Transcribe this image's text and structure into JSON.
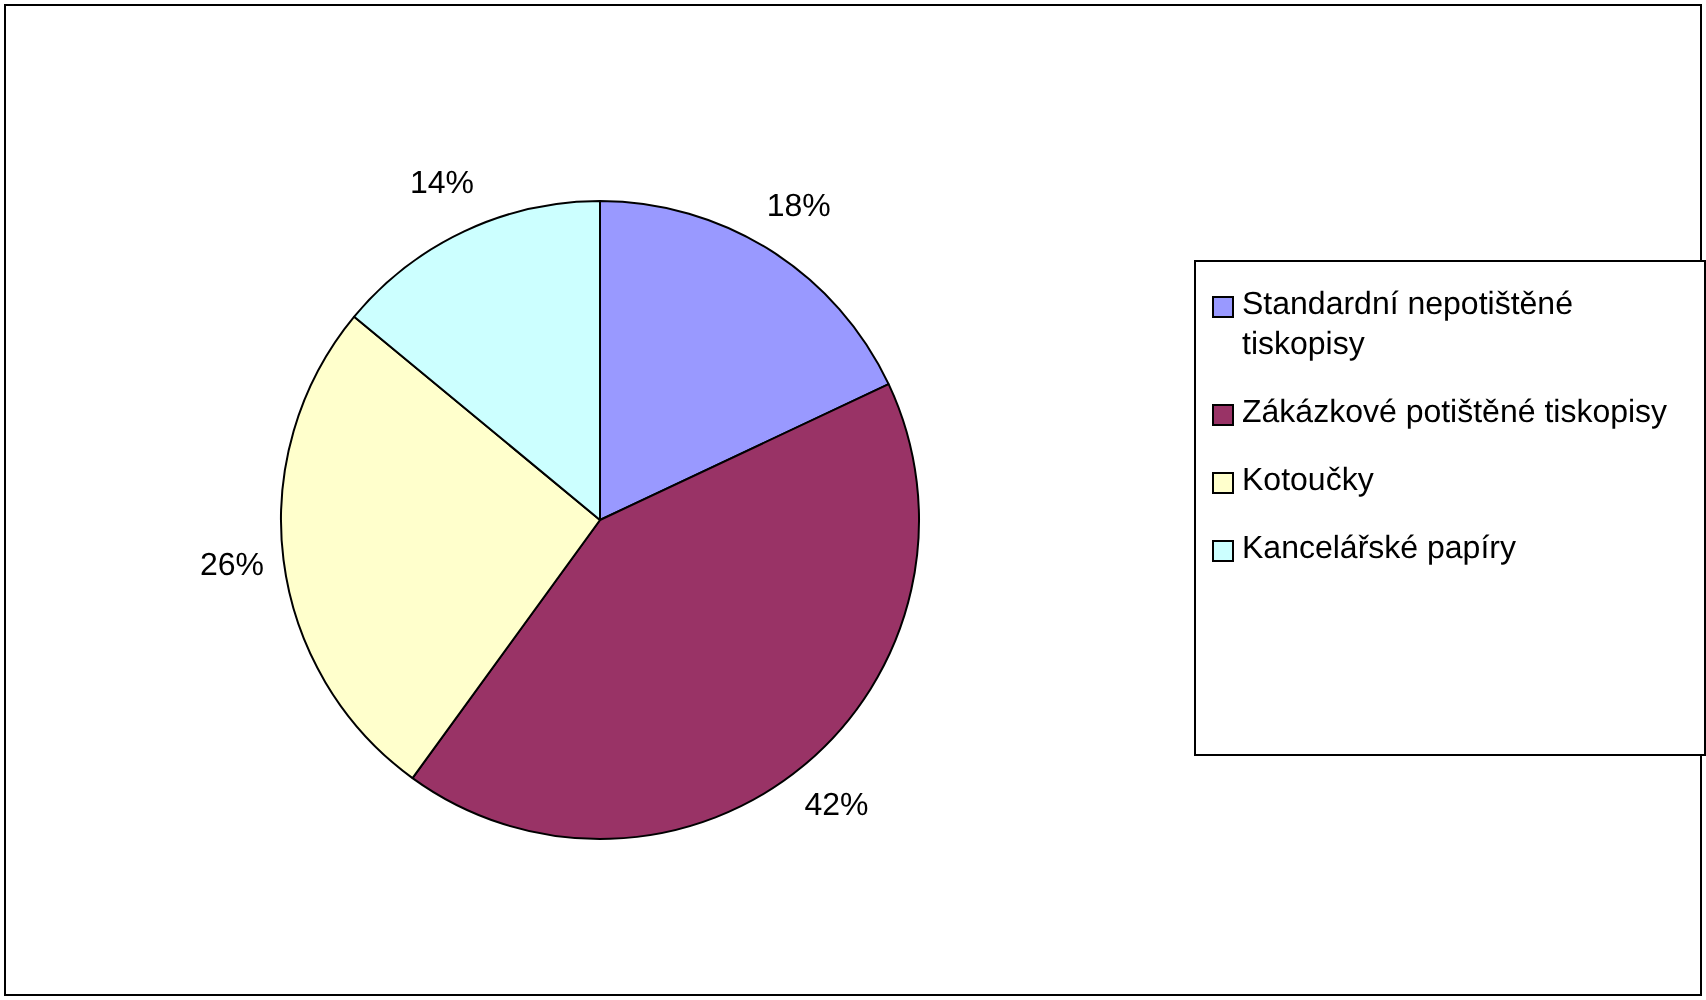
{
  "chart_data": {
    "type": "pie",
    "categories": [
      "Standardní nepotištěné tiskopisy",
      "Zákázkové potištěné tiskopisy",
      "Kotoučky",
      "Kancelářské papíry"
    ],
    "values": [
      18,
      42,
      26,
      14
    ],
    "value_labels": [
      "18%",
      "42%",
      "26%",
      "14%"
    ],
    "colors": [
      "#9999ff",
      "#993366",
      "#ffffcc",
      "#ccffff"
    ],
    "legend": "right"
  }
}
